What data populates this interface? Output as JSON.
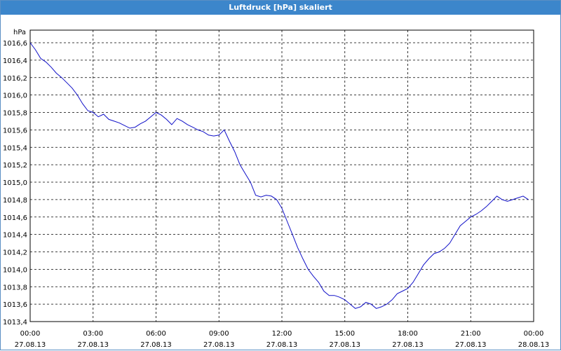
{
  "window": {
    "title": "Luftdruck [hPa] skaliert"
  },
  "colors": {
    "title_bar": "#3c86cb",
    "series_line": "#1010c8",
    "grid": "#000000"
  },
  "chart_data": {
    "type": "line",
    "title": "Luftdruck [hPa] skaliert",
    "ylabel": "hPa",
    "xlabel": "",
    "ylim": [
      1013.4,
      1016.6
    ],
    "xlim": [
      0,
      24
    ],
    "grid": true,
    "yticks": [
      "1016,6",
      "1016,4",
      "1016,2",
      "1016,0",
      "1015,8",
      "1015,6",
      "1015,4",
      "1015,2",
      "1015,0",
      "1014,8",
      "1014,6",
      "1014,4",
      "1014,2",
      "1014,0",
      "1013,8",
      "1013,6",
      "1013,4"
    ],
    "xticks": [
      {
        "time": "00:00",
        "date": "27.08.13"
      },
      {
        "time": "03:00",
        "date": "27.08.13"
      },
      {
        "time": "06:00",
        "date": "27.08.13"
      },
      {
        "time": "09:00",
        "date": "27.08.13"
      },
      {
        "time": "12:00",
        "date": "27.08.13"
      },
      {
        "time": "15:00",
        "date": "27.08.13"
      },
      {
        "time": "18:00",
        "date": "27.08.13"
      },
      {
        "time": "21:00",
        "date": "27.08.13"
      },
      {
        "time": "00:00",
        "date": "28.08.13"
      }
    ],
    "series": [
      {
        "x": [
          0.0,
          0.25,
          0.5,
          0.75,
          1.0,
          1.25,
          1.5,
          1.75,
          2.0,
          2.25,
          2.5,
          2.75,
          3.0,
          3.25,
          3.5,
          3.75,
          4.0,
          4.25,
          4.5,
          4.75,
          5.0,
          5.25,
          5.5,
          5.75,
          6.0,
          6.25,
          6.5,
          6.75,
          7.0,
          7.25,
          7.5,
          7.75,
          8.0,
          8.25,
          8.5,
          8.75,
          9.0,
          9.25,
          9.5,
          9.75,
          10.0,
          10.25,
          10.5,
          10.75,
          11.0,
          11.25,
          11.5,
          11.75,
          12.0,
          12.25,
          12.5,
          12.75,
          13.0,
          13.25,
          13.5,
          13.75,
          14.0,
          14.25,
          14.5,
          14.75,
          15.0,
          15.25,
          15.5,
          15.75,
          16.0,
          16.25,
          16.5,
          16.75,
          17.0,
          17.25,
          17.5,
          17.75,
          18.0,
          18.25,
          18.5,
          18.75,
          19.0,
          19.25,
          19.5,
          19.75,
          20.0,
          20.25,
          20.5,
          20.75,
          21.0,
          21.25,
          21.5,
          21.75,
          22.0,
          22.25,
          22.5,
          22.75,
          23.0,
          23.25,
          23.5,
          23.75
        ],
        "y": [
          1016.6,
          1016.52,
          1016.42,
          1016.38,
          1016.32,
          1016.25,
          1016.2,
          1016.14,
          1016.08,
          1016.0,
          1015.9,
          1015.82,
          1015.8,
          1015.75,
          1015.78,
          1015.72,
          1015.7,
          1015.68,
          1015.65,
          1015.62,
          1015.63,
          1015.67,
          1015.7,
          1015.75,
          1015.8,
          1015.77,
          1015.72,
          1015.66,
          1015.73,
          1015.7,
          1015.66,
          1015.63,
          1015.6,
          1015.58,
          1015.54,
          1015.53,
          1015.54,
          1015.6,
          1015.47,
          1015.35,
          1015.2,
          1015.1,
          1015.0,
          1014.85,
          1014.83,
          1014.85,
          1014.84,
          1014.8,
          1014.7,
          1014.55,
          1014.4,
          1014.25,
          1014.12,
          1014.0,
          1013.92,
          1013.85,
          1013.75,
          1013.7,
          1013.7,
          1013.68,
          1013.65,
          1013.6,
          1013.55,
          1013.57,
          1013.62,
          1013.6,
          1013.55,
          1013.57,
          1013.6,
          1013.65,
          1013.72,
          1013.75,
          1013.78,
          1013.85,
          1013.95,
          1014.05,
          1014.12,
          1014.18,
          1014.2,
          1014.24,
          1014.3,
          1014.4,
          1014.5,
          1014.55,
          1014.6,
          1014.63,
          1014.67,
          1014.72,
          1014.78,
          1014.84,
          1014.8,
          1014.78,
          1014.8,
          1014.82,
          1014.84,
          1014.8
        ]
      }
    ]
  }
}
